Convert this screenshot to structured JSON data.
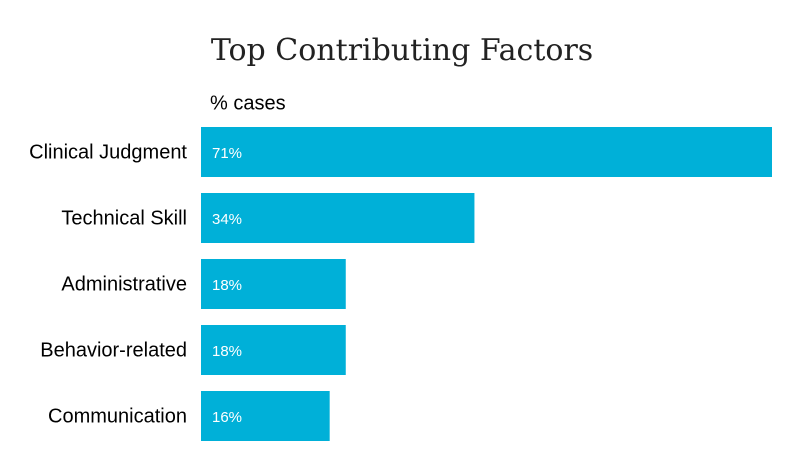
{
  "chart_data": {
    "type": "bar",
    "orientation": "horizontal",
    "title": "Top Contributing Factors",
    "x_label": "% cases",
    "categories": [
      "Clinical Judgment",
      "Technical Skill",
      "Administrative",
      "Behavior-related",
      "Communication"
    ],
    "values": [
      71,
      34,
      18,
      18,
      16
    ],
    "value_labels": [
      "71%",
      "34%",
      "18%",
      "18%",
      "16%"
    ],
    "color": "#00b0d8"
  }
}
